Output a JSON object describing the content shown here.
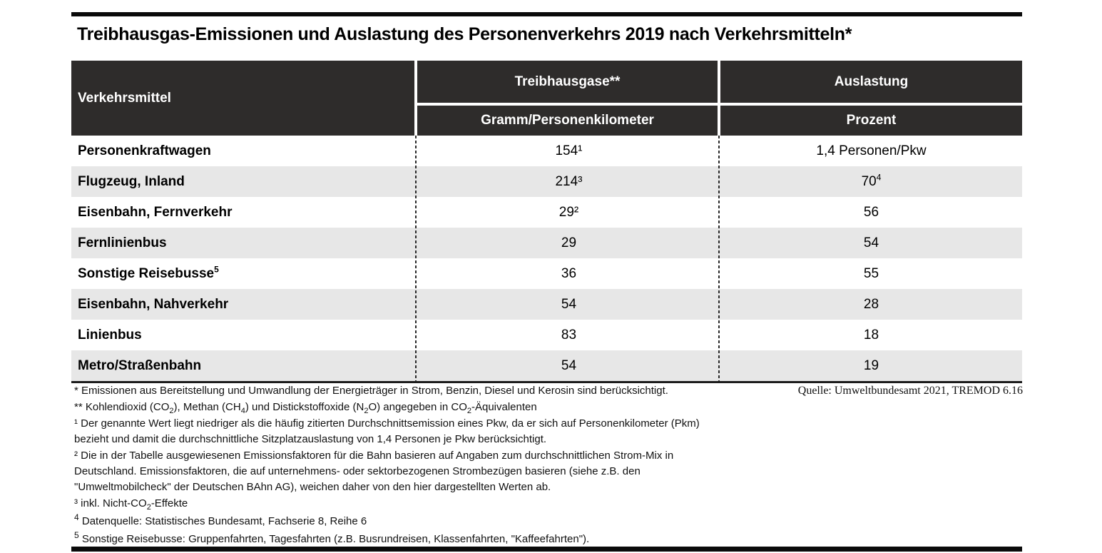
{
  "title": "Treibhausgas-Emissionen und Auslastung des Personenverkehrs 2019 nach Verkehrsmitteln*",
  "colors": {
    "header_bg": "#2e2c2b",
    "row_alt_bg": "#e7e7e7",
    "rule": "#0a0a0a",
    "text": "#000000"
  },
  "table": {
    "col1_header": "Verkehrsmittel",
    "group_headers": [
      {
        "label": "Treibhausgase**"
      },
      {
        "label": "Auslastung"
      }
    ],
    "sub_headers": [
      "Gramm/Personenkilometer",
      "Prozent"
    ],
    "rows": [
      {
        "label": "Personenkraftwagen",
        "label_sup": "",
        "ghg": "154¹",
        "util": "1,4 Personen/Pkw",
        "util_sup": ""
      },
      {
        "label": "Flugzeug, Inland",
        "label_sup": "",
        "ghg": "214³",
        "util": "70",
        "util_sup": "4"
      },
      {
        "label": "Eisenbahn, Fernverkehr",
        "label_sup": "",
        "ghg": "29²",
        "util": "56",
        "util_sup": ""
      },
      {
        "label": "Fernlinienbus",
        "label_sup": "",
        "ghg": "29",
        "util": "54",
        "util_sup": ""
      },
      {
        "label": "Sonstige Reisebusse",
        "label_sup": "5",
        "ghg": "36",
        "util": "55",
        "util_sup": ""
      },
      {
        "label": "Eisenbahn, Nahverkehr",
        "label_sup": "",
        "ghg": "54",
        "util": "28",
        "util_sup": ""
      },
      {
        "label": "Linienbus",
        "label_sup": "",
        "ghg": "83",
        "util": "18",
        "util_sup": ""
      },
      {
        "label": "Metro/Straßenbahn",
        "label_sup": "",
        "ghg": "54",
        "util": "19",
        "util_sup": ""
      }
    ]
  },
  "source": "Quelle: Umweltbundesamt 2021, TREMOD 6.16",
  "footnotes": [
    {
      "gap": false,
      "segments": [
        [
          "t",
          "* Emissionen aus Bereitstellung und Umwandlung der Energieträger in Strom, Benzin, Diesel und Kerosin sind berücksichtigt."
        ]
      ]
    },
    {
      "gap": false,
      "segments": [
        [
          "t",
          "** Kohlendioxid (CO"
        ],
        [
          "sub",
          "2"
        ],
        [
          "t",
          "), Methan (CH"
        ],
        [
          "sub",
          "4"
        ],
        [
          "t",
          ") und Distickstoffoxide (N"
        ],
        [
          "sub",
          "2"
        ],
        [
          "t",
          "O) angegeben in CO"
        ],
        [
          "sub",
          "2"
        ],
        [
          "t",
          "-Äquivalenten"
        ]
      ]
    },
    {
      "gap": false,
      "segments": [
        [
          "t",
          "¹ Der genannte Wert liegt niedriger als die häufig zitierten Durchschnittsemission eines Pkw, da er sich auf Personenkilometer (Pkm)"
        ],
        [
          "br",
          ""
        ],
        [
          "t",
          "bezieht und damit die durchschnittliche Sitzplatzauslastung von 1,4 Personen je Pkw berücksichtigt."
        ]
      ]
    },
    {
      "gap": false,
      "segments": [
        [
          "t",
          "² Die in der Tabelle ausgewiesenen Emissionsfaktoren für die Bahn basieren auf Angaben zum durchschnittlichen Strom-Mix in"
        ],
        [
          "br",
          ""
        ],
        [
          "t",
          "Deutschland. Emissionsfaktoren, die auf unternehmens- oder sektorbezogenen Strombezügen basieren (siehe z.B. den"
        ],
        [
          "br",
          ""
        ],
        [
          "t",
          "\"Umweltmobilcheck\" der Deutschen BAhn AG), weichen daher von den hier dargestellten Werten ab."
        ]
      ]
    },
    {
      "gap": false,
      "segments": [
        [
          "t",
          "³ inkl. Nicht-CO"
        ],
        [
          "sub",
          "2"
        ],
        [
          "t",
          "-Effekte"
        ]
      ]
    },
    {
      "gap": true,
      "segments": [
        [
          "sup",
          "4"
        ],
        [
          "t",
          " Datenquelle: Statistisches Bundesamt, Fachserie 8, Reihe 6"
        ]
      ]
    },
    {
      "gap": true,
      "segments": [
        [
          "sup",
          "5"
        ],
        [
          "t",
          " Sonstige Reisebusse: Gruppenfahrten, Tagesfahrten (z.B. Busrundreisen, Klassenfahrten, \"Kaffeefahrten\")."
        ]
      ]
    }
  ]
}
